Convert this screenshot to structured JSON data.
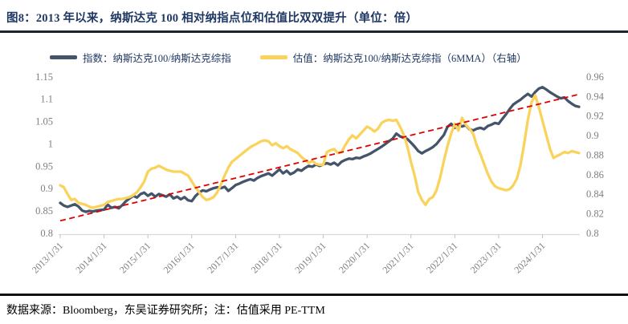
{
  "header": {
    "title": "图8：2013 年以来，纳斯达克 100 相对纳指点位和估值比双双提升（单位：倍）"
  },
  "legend": {
    "items": [
      {
        "label": "指数：纳斯达克100/纳斯达克综指",
        "color": "#44546A"
      },
      {
        "label": "估值：纳斯达克100/纳斯达克综指（6MMA）（右轴）",
        "color": "#FAD35C"
      }
    ]
  },
  "footer": {
    "text": "数据来源：Bloomberg，东吴证券研究所；注：估值采用 PE-TTM"
  },
  "colors": {
    "index_line": "#44546A",
    "valuation_line": "#FAD35C",
    "trendline": "#E00000",
    "title_text": "#1F3864",
    "axis_text": "#7F7F7F",
    "axis_line": "#D9D9D9"
  },
  "chart_data": {
    "type": "line",
    "title": "图8：2013 年以来，纳斯达克 100 相对纳指点位和估值比双双提升（单位：倍）",
    "x_frequency": "monthly",
    "x_tick_labels": [
      "2013/1/31",
      "2014/1/31",
      "2015/1/31",
      "2016/1/31",
      "2017/1/31",
      "2018/1/31",
      "2019/1/31",
      "2020/1/31",
      "2021/1/31",
      "2022/1/31",
      "2023/1/31",
      "2024/1/31"
    ],
    "left_axis": {
      "min": 0.8,
      "max": 1.15,
      "step": 0.05,
      "tick_labels": [
        "1.15",
        "1.1",
        "1.05",
        "1",
        "0.95",
        "0.9",
        "0.85",
        "0.8"
      ]
    },
    "right_axis": {
      "min": 0.8,
      "max": 0.96,
      "step": 0.02,
      "tick_labels": [
        "0.96",
        "0.94",
        "0.92",
        "0.9",
        "0.88",
        "0.86",
        "0.84",
        "0.82",
        "0.8"
      ]
    },
    "grid": false,
    "legend_position": "top",
    "series": [
      {
        "name": "指数：纳斯达克100/纳斯达克综指",
        "axis": "left",
        "color": "#44546A",
        "values": [
          0.87,
          0.864,
          0.861,
          0.864,
          0.867,
          0.862,
          0.853,
          0.85,
          0.852,
          0.851,
          0.853,
          0.854,
          0.855,
          0.866,
          0.859,
          0.861,
          0.858,
          0.865,
          0.874,
          0.88,
          0.886,
          0.882,
          0.89,
          0.893,
          0.886,
          0.891,
          0.884,
          0.89,
          0.887,
          0.884,
          0.889,
          0.88,
          0.884,
          0.878,
          0.883,
          0.876,
          0.874,
          0.885,
          0.893,
          0.898,
          0.896,
          0.9,
          0.903,
          0.905,
          0.903,
          0.906,
          0.897,
          0.903,
          0.91,
          0.913,
          0.917,
          0.92,
          0.923,
          0.92,
          0.926,
          0.93,
          0.933,
          0.936,
          0.931,
          0.938,
          0.945,
          0.936,
          0.942,
          0.934,
          0.938,
          0.945,
          0.942,
          0.948,
          0.953,
          0.951,
          0.956,
          0.953,
          0.956,
          0.959,
          0.956,
          0.96,
          0.954,
          0.962,
          0.966,
          0.969,
          0.968,
          0.971,
          0.97,
          0.974,
          0.977,
          0.981,
          0.986,
          0.991,
          0.996,
          1.002,
          1.008,
          1.014,
          1.025,
          1.019,
          1.016,
          1.013,
          1.005,
          0.996,
          0.986,
          0.981,
          0.986,
          0.99,
          0.995,
          1.002,
          1.012,
          1.022,
          1.04,
          1.047,
          1.038,
          1.046,
          1.041,
          1.044,
          1.035,
          1.032,
          1.036,
          1.038,
          1.035,
          1.042,
          1.045,
          1.049,
          1.047,
          1.058,
          1.068,
          1.08,
          1.09,
          1.096,
          1.101,
          1.108,
          1.114,
          1.108,
          1.118,
          1.126,
          1.129,
          1.124,
          1.118,
          1.113,
          1.108,
          1.104,
          1.106,
          1.098,
          1.092,
          1.087,
          1.085
        ]
      },
      {
        "name": "估值：纳斯达克100/纳斯达克综指（6MMA）（右轴）",
        "axis": "right",
        "color": "#FAD35C",
        "values": [
          0.85,
          0.848,
          0.841,
          0.835,
          0.836,
          0.832,
          0.831,
          0.83,
          0.828,
          0.827,
          0.828,
          0.829,
          0.83,
          0.833,
          0.834,
          0.835,
          0.836,
          0.836,
          0.837,
          0.838,
          0.84,
          0.843,
          0.848,
          0.854,
          0.864,
          0.867,
          0.868,
          0.87,
          0.868,
          0.866,
          0.865,
          0.864,
          0.864,
          0.864,
          0.862,
          0.86,
          0.854,
          0.848,
          0.843,
          0.838,
          0.835,
          0.836,
          0.838,
          0.843,
          0.851,
          0.86,
          0.868,
          0.874,
          0.877,
          0.88,
          0.883,
          0.886,
          0.889,
          0.891,
          0.893,
          0.895,
          0.896,
          0.895,
          0.891,
          0.893,
          0.89,
          0.888,
          0.89,
          0.887,
          0.885,
          0.883,
          0.879,
          0.876,
          0.873,
          0.875,
          0.872,
          0.871,
          0.871,
          0.884,
          0.886,
          0.887,
          0.883,
          0.884,
          0.891,
          0.897,
          0.901,
          0.898,
          0.902,
          0.906,
          0.91,
          0.908,
          0.905,
          0.908,
          0.914,
          0.916,
          0.917,
          0.916,
          0.917,
          0.91,
          0.902,
          0.89,
          0.874,
          0.86,
          0.843,
          0.835,
          0.83,
          0.836,
          0.838,
          0.845,
          0.858,
          0.875,
          0.89,
          0.903,
          0.913,
          0.906,
          0.919,
          0.912,
          0.908,
          0.903,
          0.891,
          0.882,
          0.872,
          0.862,
          0.854,
          0.849,
          0.847,
          0.846,
          0.845,
          0.846,
          0.85,
          0.857,
          0.871,
          0.893,
          0.917,
          0.935,
          0.942,
          0.93,
          0.916,
          0.902,
          0.888,
          0.878,
          0.88,
          0.882,
          0.884,
          0.883,
          0.885,
          0.884,
          0.883
        ]
      }
    ],
    "trendline": {
      "axis": "left",
      "start_value": 0.83,
      "end_value": 1.113,
      "color": "#E00000",
      "style": "dashed"
    }
  }
}
